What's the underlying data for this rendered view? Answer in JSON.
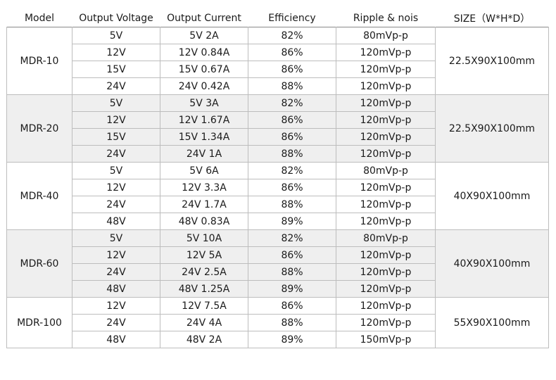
{
  "headers": [
    "Model",
    "Output Voltage",
    "Output Current",
    "Efficiency",
    "Ripple & nois",
    "SIZE（W*H*D）"
  ],
  "groups": [
    {
      "model": "MDR-10",
      "size": "22.5X90X100mm",
      "shaded": false,
      "rows": [
        {
          "voltage": "5V",
          "current": "5V 2A",
          "efficiency": "82%",
          "ripple": "80mVp-p"
        },
        {
          "voltage": "12V",
          "current": "12V 0.84A",
          "efficiency": "86%",
          "ripple": "120mVp-p"
        },
        {
          "voltage": "15V",
          "current": "15V 0.67A",
          "efficiency": "86%",
          "ripple": "120mVp-p"
        },
        {
          "voltage": "24V",
          "current": "24V 0.42A",
          "efficiency": "88%",
          "ripple": "120mVp-p"
        }
      ]
    },
    {
      "model": "MDR-20",
      "size": "22.5X90X100mm",
      "shaded": true,
      "rows": [
        {
          "voltage": "5V",
          "current": "5V 3A",
          "efficiency": "82%",
          "ripple": "120mVp-p"
        },
        {
          "voltage": "12V",
          "current": "12V 1.67A",
          "efficiency": "86%",
          "ripple": "120mVp-p"
        },
        {
          "voltage": "15V",
          "current": "15V 1.34A",
          "efficiency": "86%",
          "ripple": "120mVp-p"
        },
        {
          "voltage": "24V",
          "current": "24V 1A",
          "efficiency": "88%",
          "ripple": "120mVp-p"
        }
      ]
    },
    {
      "model": "MDR-40",
      "size": "40X90X100mm",
      "shaded": false,
      "rows": [
        {
          "voltage": "5V",
          "current": "5V 6A",
          "efficiency": "82%",
          "ripple": "80mVp-p"
        },
        {
          "voltage": "12V",
          "current": "12V 3.3A",
          "efficiency": "86%",
          "ripple": "120mVp-p"
        },
        {
          "voltage": "24V",
          "current": "24V 1.7A",
          "efficiency": "88%",
          "ripple": "120mVp-p"
        },
        {
          "voltage": "48V",
          "current": "48V 0.83A",
          "efficiency": "89%",
          "ripple": "120mVp-p"
        }
      ]
    },
    {
      "model": "MDR-60",
      "size": "40X90X100mm",
      "shaded": true,
      "rows": [
        {
          "voltage": "5V",
          "current": "5V 10A",
          "efficiency": "82%",
          "ripple": "80mVp-p"
        },
        {
          "voltage": "12V",
          "current": "12V 5A",
          "efficiency": "86%",
          "ripple": "120mVp-p"
        },
        {
          "voltage": "24V",
          "current": "24V 2.5A",
          "efficiency": "88%",
          "ripple": "120mVp-p"
        },
        {
          "voltage": "48V",
          "current": "48V 1.25A",
          "efficiency": "89%",
          "ripple": "120mVp-p"
        }
      ]
    },
    {
      "model": "MDR-100",
      "size": "55X90X100mm",
      "shaded": false,
      "rows": [
        {
          "voltage": "12V",
          "current": "12V 7.5A",
          "efficiency": "86%",
          "ripple": "120mVp-p"
        },
        {
          "voltage": "24V",
          "current": "24V 4A",
          "efficiency": "88%",
          "ripple": "120mVp-p"
        },
        {
          "voltage": "48V",
          "current": "48V 2A",
          "efficiency": "89%",
          "ripple": "150mVp-p"
        }
      ]
    }
  ]
}
